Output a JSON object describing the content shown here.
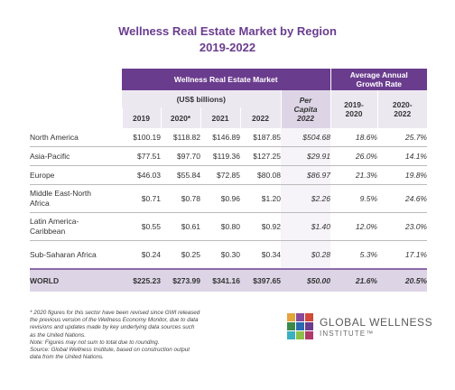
{
  "title": {
    "line1": "Wellness Real Estate Market by Region",
    "line2": "2019-2022"
  },
  "table": {
    "market_header": "Wellness Real Estate Market",
    "growth_header_l1": "Average Annual",
    "growth_header_l2": "Growth Rate",
    "unit_label": "(US$ billions)",
    "per_capita_l1": "Per",
    "per_capita_l2": "Capita",
    "per_capita_l3": "2022",
    "years": [
      "2019",
      "2020*",
      "2021",
      "2022"
    ],
    "growth_cols": [
      {
        "l1": "2019-",
        "l2": "2020"
      },
      {
        "l1": "2020-",
        "l2": "2022"
      }
    ],
    "rows": [
      {
        "region_l1": "North America",
        "region_l2": "",
        "v2019": "$100.19",
        "v2020": "$118.82",
        "v2021": "$146.89",
        "v2022": "$187.85",
        "per_capita": "$504.68",
        "g1": "18.6%",
        "g2": "25.7%"
      },
      {
        "region_l1": "Asia-Pacific",
        "region_l2": "",
        "v2019": "$77.51",
        "v2020": "$97.70",
        "v2021": "$119.36",
        "v2022": "$127.25",
        "per_capita": "$29.91",
        "g1": "26.0%",
        "g2": "14.1%"
      },
      {
        "region_l1": "Europe",
        "region_l2": "",
        "v2019": "$46.03",
        "v2020": "$55.84",
        "v2021": "$72.85",
        "v2022": "$80.08",
        "per_capita": "$86.97",
        "g1": "21.3%",
        "g2": "19.8%"
      },
      {
        "region_l1": "Middle East-North",
        "region_l2": "Africa",
        "v2019": "$0.71",
        "v2020": "$0.78",
        "v2021": "$0.96",
        "v2022": "$1.20",
        "per_capita": "$2.26",
        "g1": "9.5%",
        "g2": "24.6%"
      },
      {
        "region_l1": "Latin America-",
        "region_l2": "Caribbean",
        "v2019": "$0.55",
        "v2020": "$0.61",
        "v2021": "$0.80",
        "v2022": "$0.92",
        "per_capita": "$1.40",
        "g1": "12.0%",
        "g2": "23.0%"
      },
      {
        "region_l1": "Sub-Saharan Africa",
        "region_l2": "",
        "v2019": "$0.24",
        "v2020": "$0.25",
        "v2021": "$0.30",
        "v2022": "$0.34",
        "per_capita": "$0.28",
        "g1": "5.3%",
        "g2": "17.1%"
      }
    ],
    "world": {
      "region": "WORLD",
      "v2019": "$225.23",
      "v2020": "$273.99",
      "v2021": "$341.16",
      "v2022": "$397.65",
      "per_capita": "$50.00",
      "g1": "21.6%",
      "g2": "20.5%"
    }
  },
  "notes": {
    "n1": "* 2020 figures for this sector have been revised since GWI released",
    "n2": "the previous version of the Wellness Economy Monitor, due to data",
    "n3": "revisions and updates made by key underlying data sources such",
    "n4": "as the United Nations.",
    "n5": "Note: Figures may not sum to total due to rounding.",
    "n6": "Source: Global Wellness Institute, based on construction output",
    "n7": "data from the United Nations."
  },
  "logo": {
    "line1": "GLOBAL WELLNESS",
    "line2": "INSTITUTE™"
  },
  "colors": {
    "header_purple": "#6a3c8e",
    "subheader_light": "#ece8f0",
    "per_capita_bg": "#ddd5e6"
  }
}
